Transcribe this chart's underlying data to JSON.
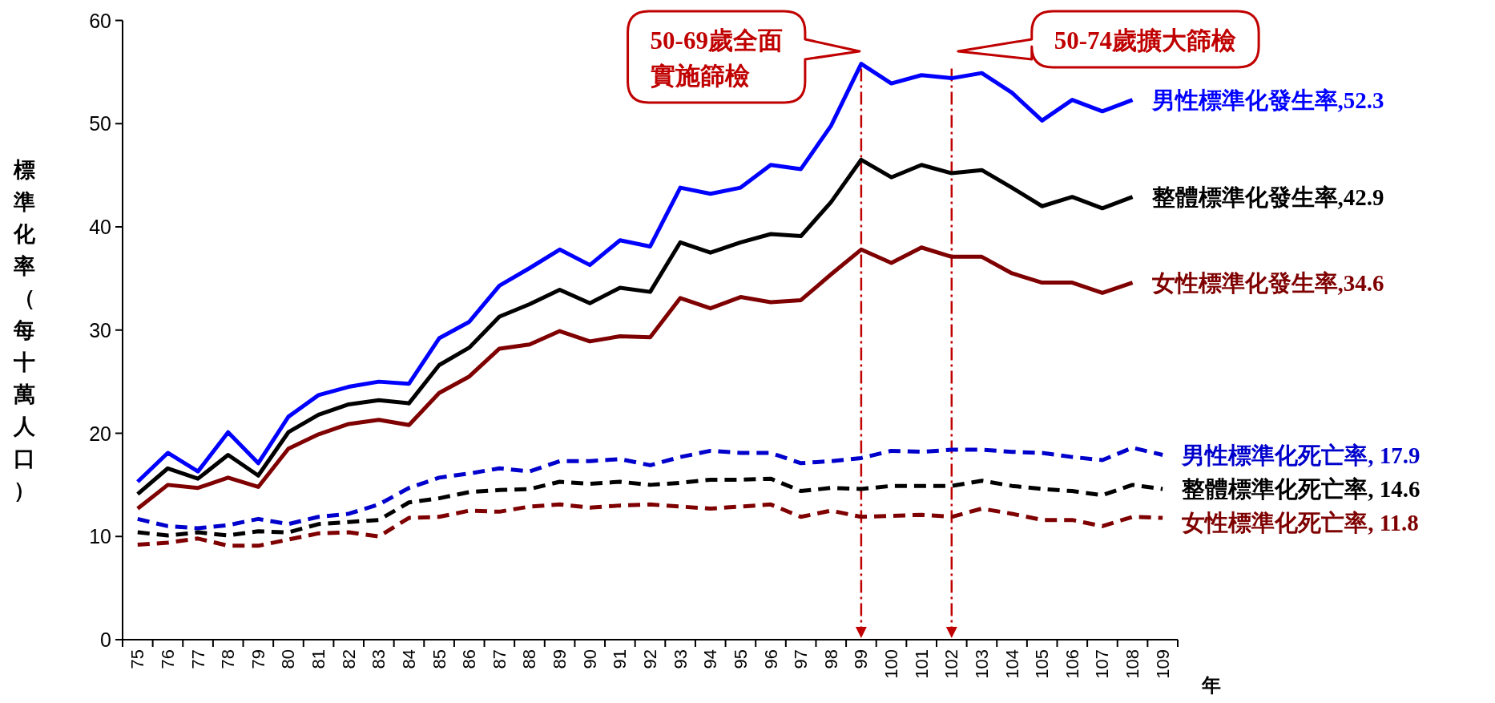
{
  "chart_data": {
    "type": "line",
    "ylabel": "標準化率（每十萬人口）",
    "xlabel": "年",
    "categories": [
      "75",
      "76",
      "77",
      "78",
      "79",
      "80",
      "81",
      "82",
      "83",
      "84",
      "85",
      "86",
      "87",
      "88",
      "89",
      "90",
      "91",
      "92",
      "93",
      "94",
      "95",
      "96",
      "97",
      "98",
      "99",
      "100",
      "101",
      "102",
      "103",
      "104",
      "105",
      "106",
      "107",
      "108",
      "109"
    ],
    "ylim": [
      0,
      60
    ],
    "yticks": [
      0,
      10,
      20,
      30,
      40,
      50,
      60
    ],
    "grid": false,
    "legend": false,
    "marker": "none",
    "series": [
      {
        "name": "男性標準化發生率,52.3",
        "color": "#0000ff",
        "line_style": "solid",
        "values": [
          15.3,
          18.1,
          16.3,
          20.1,
          17.1,
          21.6,
          23.7,
          24.5,
          25.0,
          24.8,
          29.2,
          30.8,
          34.3,
          36.0,
          37.8,
          36.3,
          38.7,
          38.1,
          43.8,
          43.2,
          43.8,
          46.0,
          45.6,
          49.8,
          55.8,
          53.9,
          54.7,
          54.4,
          54.9,
          53.0,
          50.3,
          52.3,
          51.2,
          52.3,
          null
        ]
      },
      {
        "name": "整體標準化發生率,42.9",
        "color": "#000000",
        "line_style": "solid",
        "values": [
          14.1,
          16.6,
          15.6,
          17.9,
          15.9,
          20.1,
          21.8,
          22.8,
          23.2,
          22.9,
          26.6,
          28.3,
          31.3,
          32.5,
          33.9,
          32.6,
          34.1,
          33.7,
          38.5,
          37.5,
          38.5,
          39.3,
          39.1,
          42.4,
          46.5,
          44.8,
          46.0,
          45.2,
          45.5,
          43.8,
          42.0,
          42.9,
          41.8,
          42.9,
          null
        ]
      },
      {
        "name": "女性標準化發生率,34.6",
        "color": "#7f0000",
        "line_style": "solid",
        "values": [
          12.7,
          15.0,
          14.7,
          15.7,
          14.8,
          18.5,
          19.9,
          20.9,
          21.3,
          20.8,
          23.9,
          25.5,
          28.2,
          28.6,
          29.9,
          28.9,
          29.4,
          29.3,
          33.1,
          32.1,
          33.2,
          32.7,
          32.9,
          35.4,
          37.8,
          36.5,
          38.0,
          37.1,
          37.1,
          35.5,
          34.6,
          34.6,
          33.6,
          34.6,
          null
        ]
      },
      {
        "name": "男性標準化死亡率, 17.9",
        "color": "#0000cc",
        "line_style": "dashed",
        "values": [
          11.7,
          11.0,
          10.8,
          11.1,
          11.7,
          11.2,
          11.9,
          12.2,
          13.1,
          14.7,
          15.7,
          16.1,
          16.6,
          16.3,
          17.3,
          17.3,
          17.5,
          16.9,
          17.7,
          18.3,
          18.1,
          18.1,
          17.1,
          17.3,
          17.6,
          18.3,
          18.2,
          18.4,
          18.4,
          18.2,
          18.1,
          17.7,
          17.4,
          18.6,
          17.9
        ]
      },
      {
        "name": "整體標準化死亡率, 14.6",
        "color": "#000000",
        "line_style": "dashed",
        "values": [
          10.4,
          10.1,
          10.4,
          10.1,
          10.5,
          10.4,
          11.2,
          11.4,
          11.6,
          13.3,
          13.7,
          14.3,
          14.5,
          14.6,
          15.3,
          15.1,
          15.3,
          15.0,
          15.2,
          15.5,
          15.5,
          15.6,
          14.4,
          14.7,
          14.6,
          14.9,
          14.9,
          14.9,
          15.4,
          14.9,
          14.6,
          14.4,
          14.0,
          15.0,
          14.6
        ]
      },
      {
        "name": "女性標準化死亡率, 11.8",
        "color": "#7f0000",
        "line_style": "dashed",
        "values": [
          9.2,
          9.4,
          9.8,
          9.1,
          9.1,
          9.7,
          10.3,
          10.4,
          10.0,
          11.8,
          11.9,
          12.5,
          12.4,
          12.9,
          13.1,
          12.8,
          13.0,
          13.1,
          12.9,
          12.7,
          12.9,
          13.1,
          11.9,
          12.5,
          11.9,
          12.0,
          12.1,
          11.9,
          12.7,
          12.2,
          11.6,
          11.6,
          11.0,
          11.9,
          11.8
        ]
      }
    ],
    "ref_lines": [
      {
        "axis": "x",
        "value": "99",
        "label": "50-69歲全面實施篩檢",
        "color": "#c00000",
        "line_style": "dashdot"
      },
      {
        "axis": "x",
        "value": "102",
        "label": "50-74歲擴大篩檢",
        "color": "#c00000",
        "line_style": "dashdot"
      }
    ]
  }
}
